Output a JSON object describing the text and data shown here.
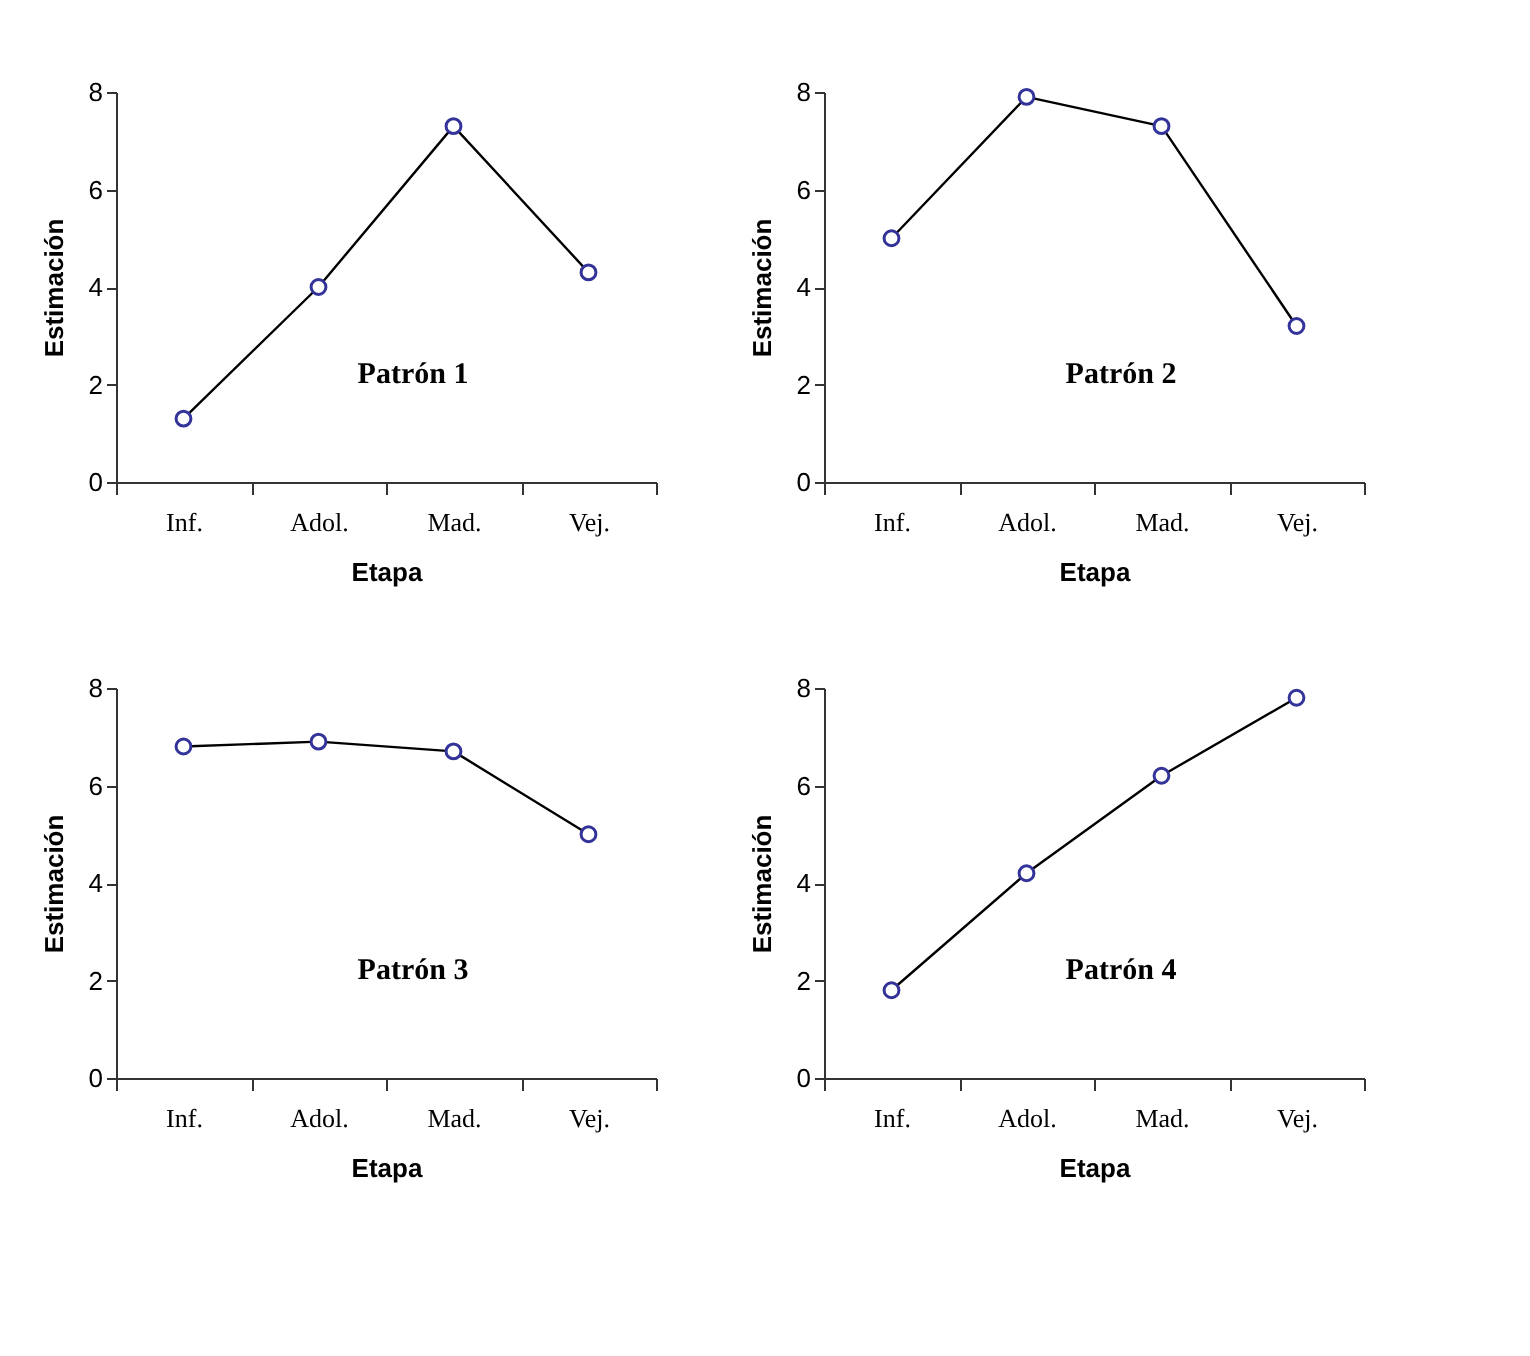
{
  "chart_data": [
    {
      "type": "line",
      "categories": [
        "Inf.",
        "Adol.",
        "Mad.",
        "Vej."
      ],
      "values": [
        1.3,
        4.0,
        7.3,
        4.3
      ],
      "color": "#000000",
      "marker": "circle",
      "xlabel": "Etapa",
      "ylabel": "Estimación",
      "ylim": [
        0,
        8
      ],
      "yticks": [
        0,
        2,
        4,
        6,
        8
      ],
      "grid": false,
      "annotations": [
        "Patrón 1"
      ]
    },
    {
      "type": "line",
      "categories": [
        "Inf.",
        "Adol.",
        "Mad.",
        "Vej."
      ],
      "values": [
        5.0,
        7.9,
        7.3,
        3.2
      ],
      "color": "#000000",
      "marker": "circle",
      "xlabel": "Etapa",
      "ylabel": "Estimación",
      "ylim": [
        0,
        8
      ],
      "yticks": [
        0,
        2,
        4,
        6,
        8
      ],
      "grid": false,
      "annotations": [
        "Patrón 2"
      ]
    },
    {
      "type": "line",
      "categories": [
        "Inf.",
        "Adol.",
        "Mad.",
        "Vej."
      ],
      "values": [
        6.8,
        6.9,
        6.7,
        5.0
      ],
      "color": "#000000",
      "marker": "circle",
      "xlabel": "Etapa",
      "ylabel": "Estimación",
      "ylim": [
        0,
        8
      ],
      "yticks": [
        0,
        2,
        4,
        6,
        8
      ],
      "grid": false,
      "annotations": [
        "Patrón 3"
      ]
    },
    {
      "type": "line",
      "categories": [
        "Inf.",
        "Adol.",
        "Mad.",
        "Vej."
      ],
      "values": [
        1.8,
        4.2,
        6.2,
        7.8
      ],
      "color": "#000000",
      "marker": "circle",
      "xlabel": "Etapa",
      "ylabel": "Estimación",
      "ylim": [
        0,
        8
      ],
      "yticks": [
        0,
        2,
        4,
        6,
        8
      ],
      "grid": false,
      "annotations": [
        "Patrón 4"
      ]
    }
  ]
}
